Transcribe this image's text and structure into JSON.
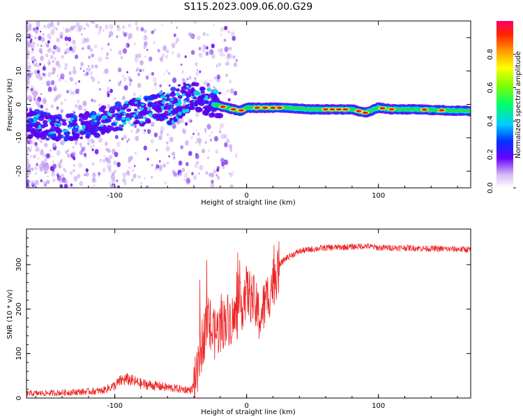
{
  "title": "S115.2023.009.06.00.G29",
  "colors": {
    "snr_line": "#ee2222",
    "ridge_hi": "#ee1111",
    "ridge_mid": "#22dd44",
    "ridge_low": "#00d8e8",
    "scatter": "#5a00ee",
    "scatter_faint": "#c9a6f2"
  },
  "chart_data": [
    {
      "type": "heatmap",
      "xlabel": "Height of straight line (km)",
      "ylabel": "Frequency (Hz)",
      "xlim": [
        -167,
        170
      ],
      "ylim": [
        -25,
        25
      ],
      "xticks": [
        -100,
        0,
        100
      ],
      "xtick_labels": [
        "-100",
        "0",
        "100"
      ],
      "yticks": [
        -20,
        -10,
        0,
        10,
        20
      ],
      "ytick_labels": [
        "-20",
        "-10",
        "0",
        "10",
        "20"
      ],
      "colorbar": {
        "label": "Normalized spectral amplitude",
        "range": [
          0,
          1
        ],
        "ticks": [
          0,
          0.2,
          0.4,
          0.6,
          0.8
        ],
        "tick_labels": [
          "0.0",
          "0.2",
          "0.4",
          "0.6",
          "0.8"
        ]
      },
      "ridge_x": [
        -160,
        -140,
        -120,
        -100,
        -80,
        -60,
        -45,
        -35,
        -25,
        -15,
        -5,
        0,
        10,
        30,
        50,
        65,
        80,
        90,
        100,
        110,
        130,
        150,
        170
      ],
      "ridge_y": [
        -6,
        -7,
        -6,
        -4,
        -2,
        0,
        3,
        2,
        0,
        -1,
        -2,
        -1,
        -1,
        -1,
        -1.5,
        -1.5,
        -1.5,
        -2.5,
        -1,
        -1.5,
        -1.5,
        -1.8,
        -2
      ],
      "grid": false
    },
    {
      "type": "line",
      "xlabel": "Height of straight line (km)",
      "ylabel": "SNR (10 * v/v)",
      "xlim": [
        -167,
        170
      ],
      "ylim": [
        0,
        380
      ],
      "xticks": [
        -100,
        0,
        100
      ],
      "xtick_labels": [
        "-100",
        "0",
        "100"
      ],
      "yticks": [
        0,
        100,
        200,
        300
      ],
      "ytick_labels": [
        "0",
        "100",
        "200",
        "300"
      ],
      "x": [
        -167,
        -140,
        -110,
        -100,
        -95,
        -90,
        -80,
        -70,
        -60,
        -50,
        -42,
        -38,
        -34,
        -30,
        -25,
        -20,
        -15,
        -10,
        -5,
        0,
        5,
        10,
        15,
        20,
        25,
        30,
        40,
        50,
        60,
        80,
        90,
        95,
        100,
        120,
        140,
        170
      ],
      "y": [
        10,
        12,
        16,
        28,
        40,
        42,
        32,
        28,
        24,
        20,
        18,
        40,
        120,
        170,
        140,
        160,
        180,
        175,
        200,
        240,
        220,
        180,
        220,
        260,
        300,
        315,
        330,
        335,
        338,
        340,
        342,
        340,
        338,
        338,
        336,
        334
      ],
      "grid": false
    }
  ]
}
